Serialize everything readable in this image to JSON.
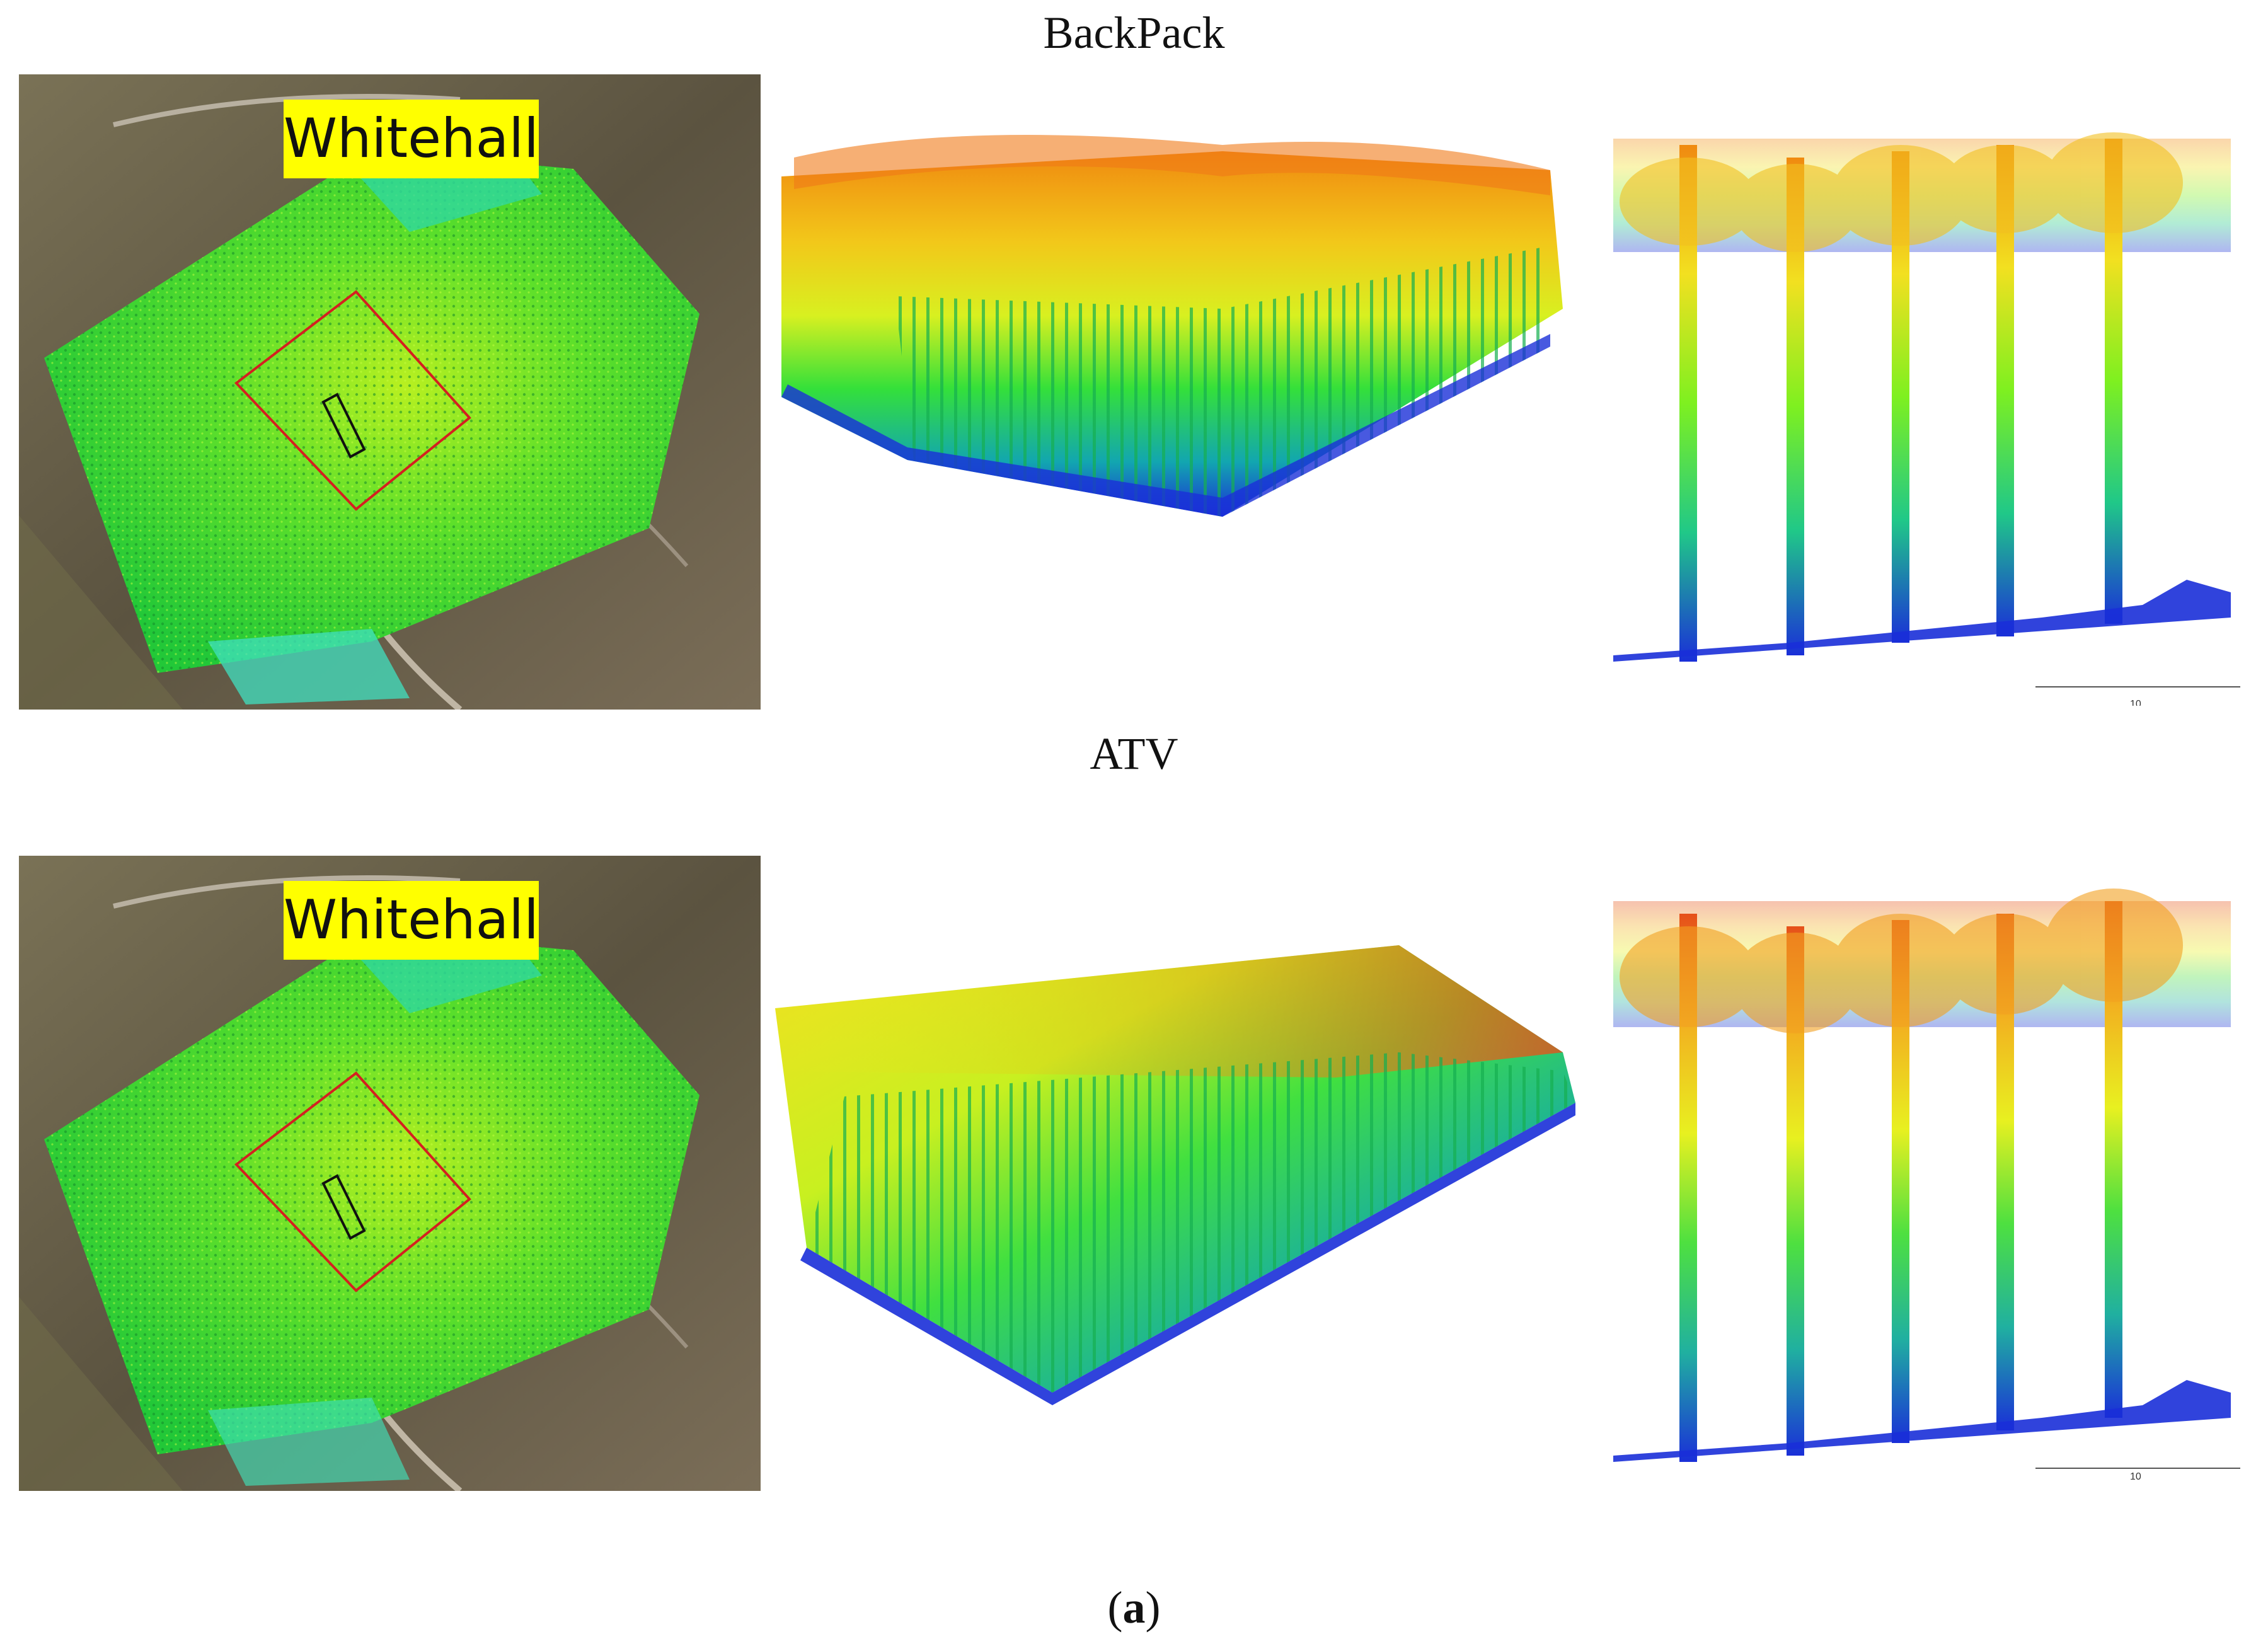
{
  "figure": {
    "rows": [
      {
        "title": "BackPack",
        "map_label": "Whitehall",
        "scale_label": "10"
      },
      {
        "title": "ATV",
        "map_label": "Whitehall",
        "scale_label": "10"
      }
    ],
    "caption_open": "(",
    "caption_letter": "a",
    "caption_close": ")"
  },
  "colors": {
    "ground_blue": "#1a2fd8",
    "mid_green": "#2ee62e",
    "canopy_yellow": "#f2f20a",
    "canopy_orange": "#f29a12",
    "top_red": "#e6501a",
    "roi_red": "#d42020",
    "label_yellow": "#ffff00"
  }
}
